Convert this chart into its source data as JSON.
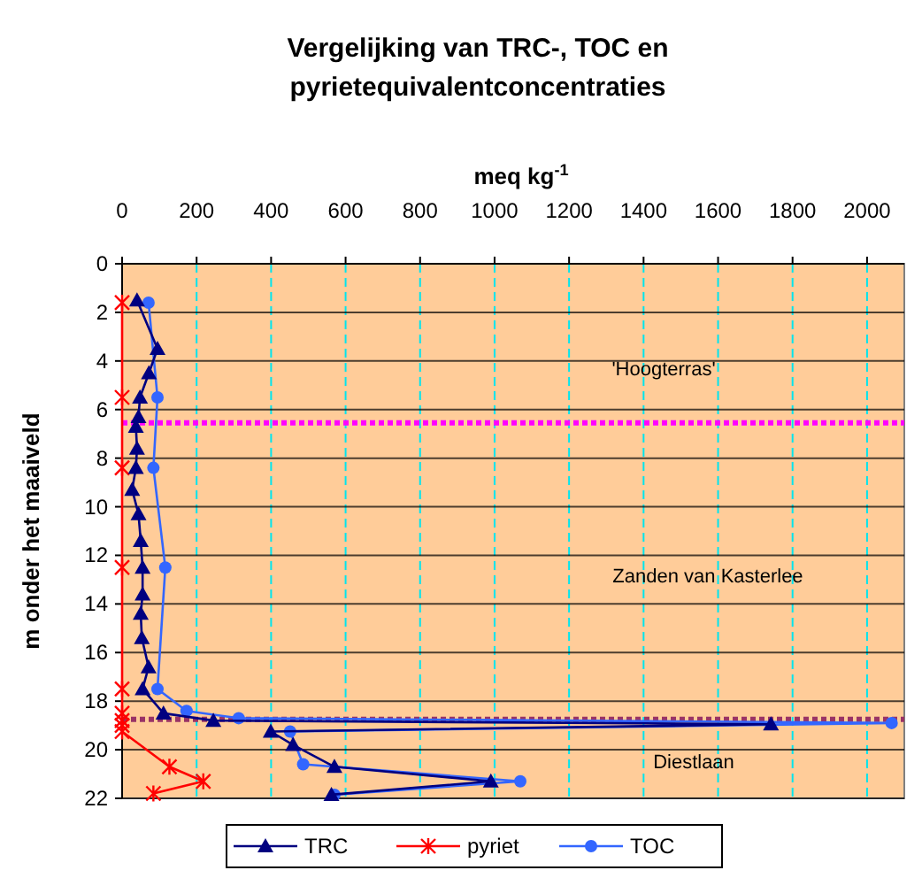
{
  "chart_data": {
    "type": "line",
    "title": "Vergelijking van TRC-, TOC en pyrietequivalentconcentraties",
    "xlabel": "meq kg$^{-1}$",
    "ylabel": "m onder het maaiveld",
    "xlim": [
      0,
      2100
    ],
    "xticks": [
      0,
      200,
      400,
      600,
      800,
      1000,
      1200,
      1400,
      1600,
      1800,
      2000
    ],
    "ylim": [
      22,
      0
    ],
    "yticks": [
      0,
      2,
      4,
      6,
      8,
      10,
      12,
      14,
      16,
      18,
      20,
      22
    ],
    "grid": true,
    "legend": "bottom",
    "series": [
      {
        "name": "TRC",
        "color": "#000080",
        "marker": "triangle",
        "x": [
          40,
          95,
          72,
          48,
          44,
          37,
          40,
          37,
          27,
          44,
          50,
          55,
          55,
          50,
          53,
          71,
          55,
          111,
          245,
          1742,
          399,
          459,
          570,
          990,
          562
        ],
        "values": [
          1.5,
          3.5,
          4.5,
          5.5,
          6.3,
          6.7,
          7.6,
          8.4,
          9.3,
          10.3,
          11.4,
          12.5,
          13.6,
          14.4,
          15.4,
          16.6,
          17.5,
          18.5,
          18.8,
          18.95,
          19.25,
          19.8,
          20.7,
          21.3,
          21.85
        ]
      },
      {
        "name": "pyriet",
        "color": "#ff0000",
        "marker": "cross",
        "x": [
          0,
          0,
          0,
          0,
          0,
          0,
          0,
          0,
          0,
          127,
          218,
          84
        ],
        "values": [
          1.6,
          5.5,
          8.4,
          12.5,
          17.5,
          18.5,
          18.8,
          19.0,
          19.25,
          20.7,
          21.3,
          21.8
        ]
      },
      {
        "name": "TOC",
        "color": "#3366ff",
        "marker": "circle",
        "x": [
          71,
          95,
          84,
          116,
          95,
          173,
          313,
          2066,
          451,
          486,
          1069,
          570
        ],
        "values": [
          1.6,
          5.5,
          8.4,
          12.5,
          17.5,
          18.4,
          18.7,
          18.9,
          19.25,
          20.6,
          21.3,
          21.85
        ]
      }
    ],
    "ref_lines": [
      {
        "axis": "y",
        "value": 6.55,
        "color": "#ff00ff",
        "line_style": "dotted"
      },
      {
        "axis": "y",
        "value": 18.75,
        "color": "#993366",
        "line_style": "dotted"
      }
    ],
    "annotations": [
      "'Hoogterras'",
      "Zanden van Kasterlee",
      "Diestlaan"
    ]
  }
}
